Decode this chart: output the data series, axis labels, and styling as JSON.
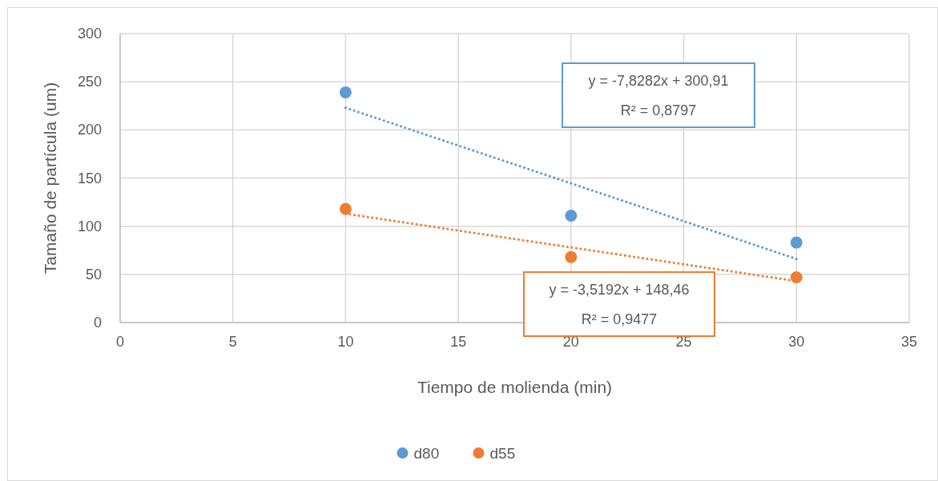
{
  "chart_data": {
    "type": "scatter",
    "xlabel": "Tiempo de molienda (min)",
    "ylabel": "Tamaño de partícula (um)",
    "xlim": [
      0,
      35
    ],
    "xticks": [
      0,
      5,
      10,
      15,
      20,
      25,
      30,
      35
    ],
    "ylim": [
      0,
      300
    ],
    "yticks": [
      0,
      50,
      100,
      150,
      200,
      250,
      300
    ],
    "grid": true,
    "legend": "bottom",
    "series": [
      {
        "name": "d80",
        "marker": "circle",
        "color": "#5b9bd5",
        "x": [
          10,
          20,
          30
        ],
        "values": [
          239,
          111,
          83
        ]
      },
      {
        "name": "d55",
        "marker": "circle",
        "color": "#ed7d31",
        "x": [
          10,
          20,
          30
        ],
        "values": [
          118,
          68,
          47
        ]
      },
      {
        "type": "line",
        "line_style": "dotted",
        "color": "#5b9bd5",
        "x": [
          10,
          30
        ],
        "values": [
          223,
          66
        ]
      },
      {
        "type": "line",
        "line_style": "dotted",
        "color": "#ed7d31",
        "x": [
          10,
          30
        ],
        "values": [
          113,
          43
        ]
      }
    ],
    "annotations": [
      "y = -7,8282x + 300,91",
      "R² = 0,8797",
      "y = -3,5192x + 148,46",
      "R² = 0,9477"
    ]
  }
}
